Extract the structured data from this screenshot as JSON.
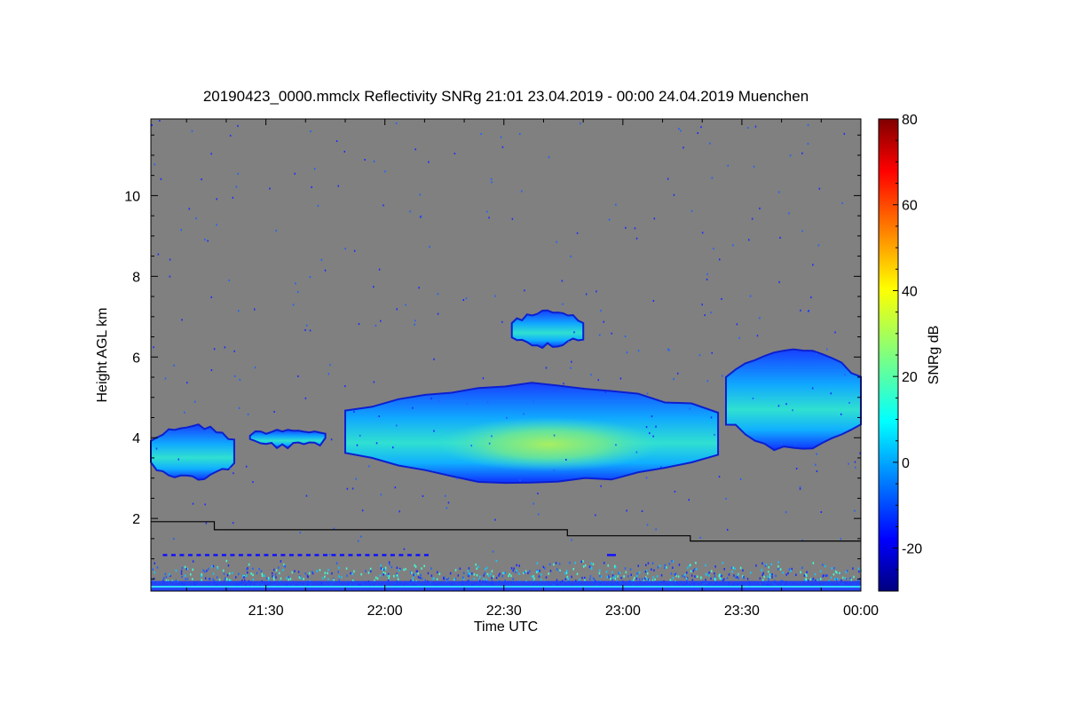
{
  "chart_data": {
    "type": "heatmap",
    "title": "20190423_0000.mmclx Reflectivity SNRg   21:01 23.04.2019 - 00:00 24.04.2019 Muenchen",
    "xlabel": "Time UTC",
    "ylabel": "Height AGL km",
    "xlim": [
      "21:01",
      "00:00"
    ],
    "ylim": [
      0.2,
      11.9
    ],
    "x_ticks": [
      "21:30",
      "22:00",
      "22:30",
      "23:00",
      "23:30",
      "00:00"
    ],
    "y_ticks": [
      2,
      4,
      6,
      8,
      10
    ],
    "colorbar": {
      "label": "SNRg dB",
      "range": [
        -30,
        80
      ],
      "ticks": [
        -20,
        0,
        20,
        40,
        60,
        80
      ],
      "colormap": "jet"
    },
    "background_color": "#808080",
    "cloud_regions": [
      {
        "name": "low cloud west",
        "start": "21:01",
        "end": "21:22",
        "base_km": 3.0,
        "top_km": 4.3,
        "max_snr_db": 5
      },
      {
        "name": "small fragment",
        "start": "21:26",
        "end": "21:45",
        "base_km": 3.8,
        "top_km": 4.2,
        "max_snr_db": 0
      },
      {
        "name": "main cloud",
        "start": "21:50",
        "end": "23:24",
        "base_km": 2.9,
        "top_km": 5.3,
        "max_snr_db": 30
      },
      {
        "name": "elevated cloud",
        "start": "22:32",
        "end": "22:50",
        "base_km": 6.3,
        "top_km": 7.1,
        "max_snr_db": -5
      },
      {
        "name": "cloud east",
        "start": "23:26",
        "end": "00:00",
        "base_km": 3.7,
        "top_km": 6.2,
        "max_snr_db": 10
      }
    ],
    "boundary_line": {
      "color": "#000000",
      "points": [
        [
          "21:01",
          1.92
        ],
        [
          "21:17",
          1.92
        ],
        [
          "21:17",
          1.72
        ],
        [
          "22:46",
          1.72
        ],
        [
          "22:46",
          1.57
        ],
        [
          "23:17",
          1.57
        ],
        [
          "23:17",
          1.44
        ],
        [
          "00:00",
          1.44
        ]
      ]
    },
    "grid": false
  }
}
